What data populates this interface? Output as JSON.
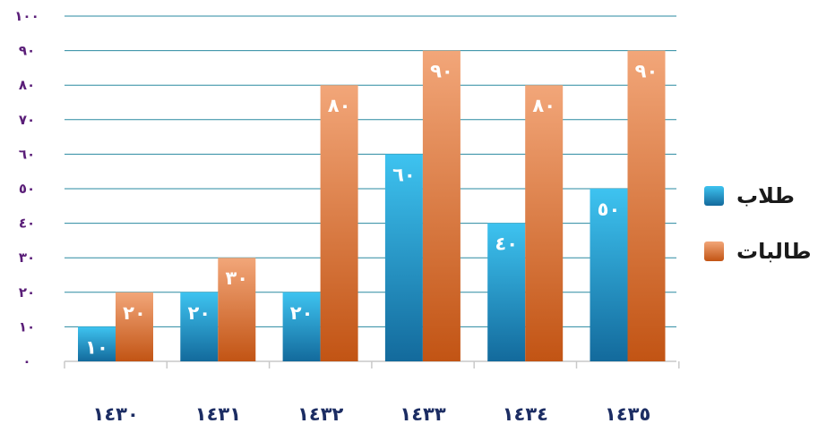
{
  "chart_data": {
    "type": "bar",
    "categories": [
      "١٤٣٠",
      "١٤٣١",
      "١٤٣٢",
      "١٤٣٣",
      "١٤٣٤",
      "١٤٣٥"
    ],
    "series": [
      {
        "name": "طلاب",
        "values": [
          10,
          20,
          20,
          60,
          40,
          50
        ],
        "labels": [
          "١٠",
          "٢٠",
          "٢٠",
          "٦٠",
          "٤٠",
          "٥٠"
        ],
        "color": "#1aa3d6"
      },
      {
        "name": "طالبات",
        "values": [
          20,
          30,
          80,
          90,
          80,
          90
        ],
        "labels": [
          "٢٠",
          "٣٠",
          "٨٠",
          "٩٠",
          "٨٠",
          "٩٠"
        ],
        "color": "#e07a3c"
      }
    ],
    "ylim": [
      0,
      100
    ],
    "yticks": [
      0,
      10,
      20,
      30,
      40,
      50,
      60,
      70,
      80,
      90,
      100
    ],
    "ytick_labels": [
      "٠",
      "١٠",
      "٢٠",
      "٣٠",
      "٤٠",
      "٥٠",
      "٦٠",
      "٧٠",
      "٨٠",
      "٩٠",
      "١٠٠"
    ],
    "grid": true,
    "legend_position": "right",
    "title": "",
    "xlabel": "",
    "ylabel": ""
  }
}
